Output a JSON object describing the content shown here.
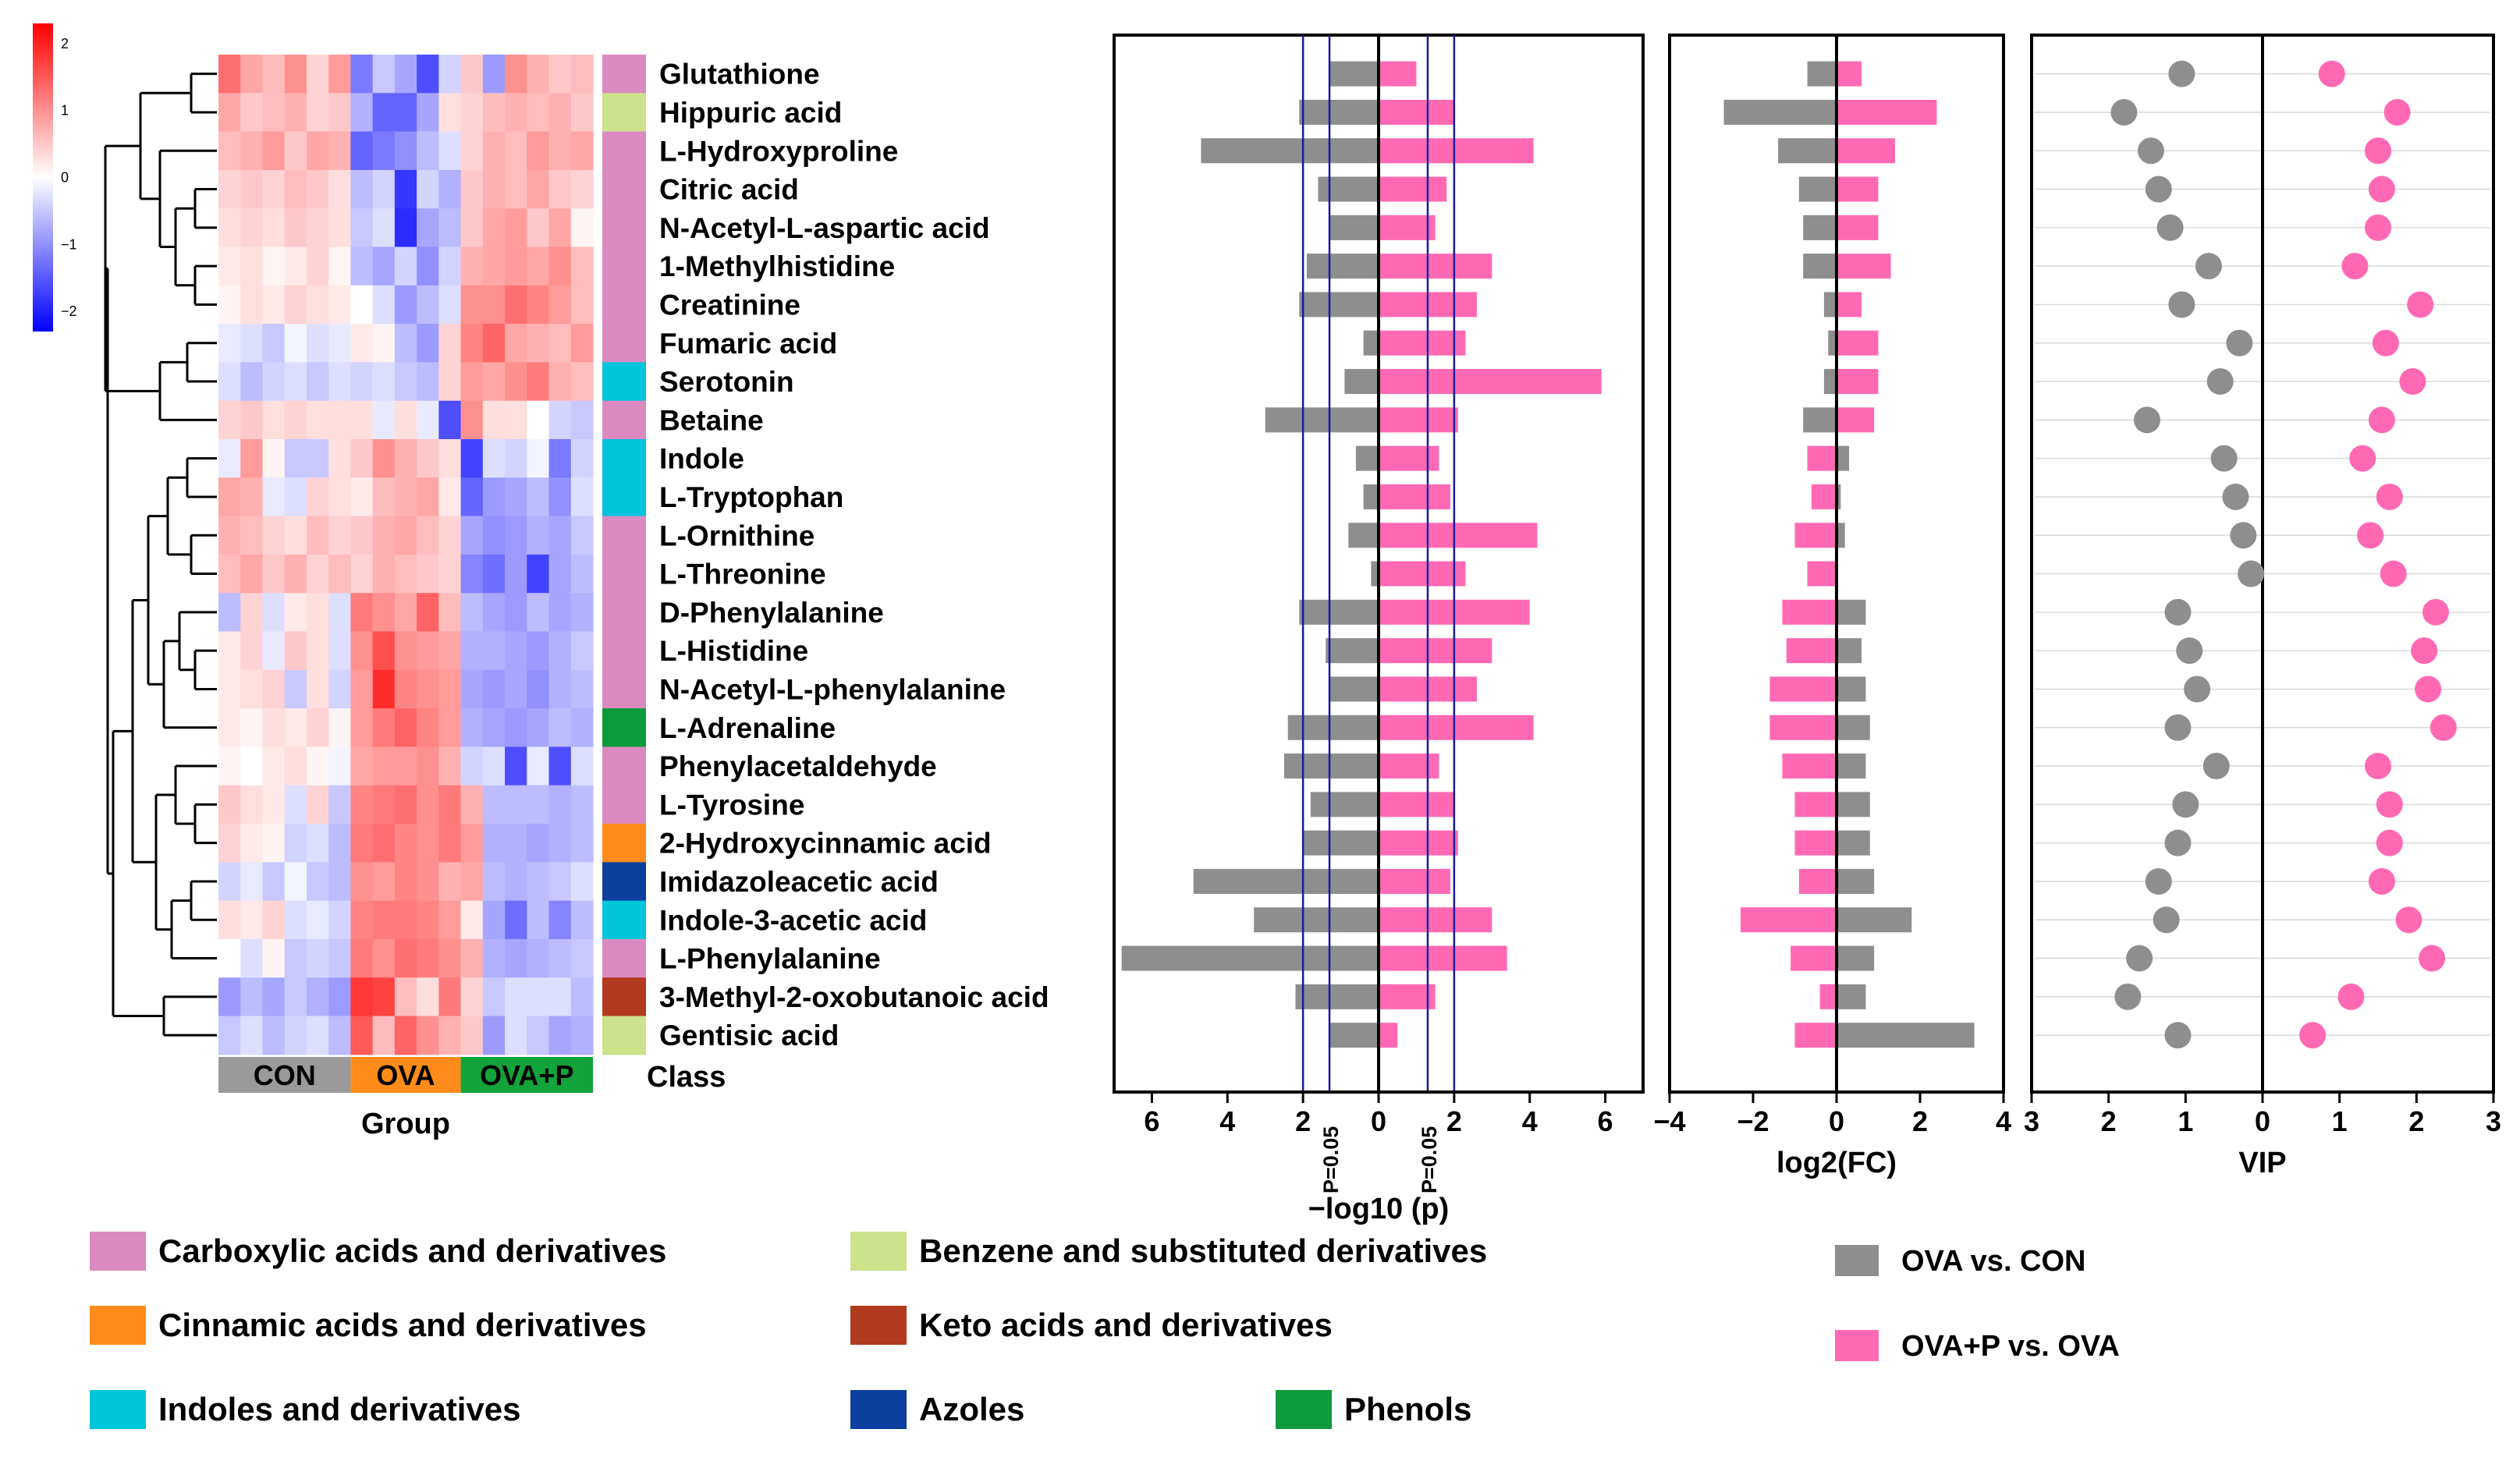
{
  "colors": {
    "Carboxylic acids and derivatives": "#DA8AC0",
    "Benzene and substituted derivatives": "#CDE38B",
    "Cinnamic acids and derivatives": "#FF8C1A",
    "Keto acids and derivatives": "#B23A1E",
    "Indoles and derivatives": "#00C5DB",
    "Azoles": "#0C3E9E",
    "Phenols": "#0C9B3B",
    "ova_vs_con": "#8E8E8E",
    "ovap_vs_ova": "#FF69B4",
    "group_CON": "#9A9A9A",
    "group_OVA": "#FF8C1A",
    "group_OVAP": "#12A33A",
    "pline": "#1A1AA0"
  },
  "chart_data": {
    "type": "heatmap",
    "title": "",
    "metabolites": [
      {
        "name": "Glutathione",
        "class": "Carboxylic acids and derivatives",
        "p_con": 1.3,
        "p_p": 1.0,
        "fc_con": -0.7,
        "fc_p": 0.6,
        "vip_con": 1.05,
        "vip_p": 0.9
      },
      {
        "name": "Hippuric acid",
        "class": "Benzene and substituted derivatives",
        "p_con": 2.1,
        "p_p": 2.0,
        "fc_con": -2.7,
        "fc_p": 2.4,
        "vip_con": 1.8,
        "vip_p": 1.75
      },
      {
        "name": "L-Hydroxyproline",
        "class": "Carboxylic acids and derivatives",
        "p_con": 4.7,
        "p_p": 4.1,
        "fc_con": -1.4,
        "fc_p": 1.4,
        "vip_con": 1.45,
        "vip_p": 1.5
      },
      {
        "name": "Citric acid",
        "class": "Carboxylic acids and derivatives",
        "p_con": 1.6,
        "p_p": 1.8,
        "fc_con": -0.9,
        "fc_p": 1.0,
        "vip_con": 1.35,
        "vip_p": 1.55
      },
      {
        "name": "N-Acetyl-L-aspartic acid",
        "class": "Carboxylic acids and derivatives",
        "p_con": 1.3,
        "p_p": 1.5,
        "fc_con": -0.8,
        "fc_p": 1.0,
        "vip_con": 1.2,
        "vip_p": 1.5
      },
      {
        "name": "1-Methylhistidine",
        "class": "Carboxylic acids and derivatives",
        "p_con": 1.9,
        "p_p": 3.0,
        "fc_con": -0.8,
        "fc_p": 1.3,
        "vip_con": 0.7,
        "vip_p": 1.2
      },
      {
        "name": "Creatinine",
        "class": "Carboxylic acids and derivatives",
        "p_con": 2.1,
        "p_p": 2.6,
        "fc_con": -0.3,
        "fc_p": 0.6,
        "vip_con": 1.05,
        "vip_p": 2.05
      },
      {
        "name": "Fumaric acid",
        "class": "Carboxylic acids and derivatives",
        "p_con": 0.4,
        "p_p": 2.3,
        "fc_con": -0.2,
        "fc_p": 1.0,
        "vip_con": 0.3,
        "vip_p": 1.6
      },
      {
        "name": "Serotonin",
        "class": "Indoles and derivatives",
        "p_con": 0.9,
        "p_p": 5.9,
        "fc_con": -0.3,
        "fc_p": 1.0,
        "vip_con": 0.55,
        "vip_p": 1.95
      },
      {
        "name": "Betaine",
        "class": "Carboxylic acids and derivatives",
        "p_con": 3.0,
        "p_p": 2.1,
        "fc_con": -0.8,
        "fc_p": 0.9,
        "vip_con": 1.5,
        "vip_p": 1.55
      },
      {
        "name": "Indole",
        "class": "Indoles and derivatives",
        "p_con": 0.6,
        "p_p": 1.6,
        "fc_con": 0.3,
        "fc_p": -0.7,
        "vip_con": 0.5,
        "vip_p": 1.3
      },
      {
        "name": "L-Tryptophan",
        "class": "Indoles and derivatives",
        "p_con": 0.4,
        "p_p": 1.9,
        "fc_con": 0.1,
        "fc_p": -0.6,
        "vip_con": 0.35,
        "vip_p": 1.65
      },
      {
        "name": "L-Ornithine",
        "class": "Carboxylic acids and derivatives",
        "p_con": 0.8,
        "p_p": 4.2,
        "fc_con": 0.2,
        "fc_p": -1.0,
        "vip_con": 0.25,
        "vip_p": 1.4
      },
      {
        "name": "L-Threonine",
        "class": "Carboxylic acids and derivatives",
        "p_con": 0.2,
        "p_p": 2.3,
        "fc_con": 0.0,
        "fc_p": -0.7,
        "vip_con": 0.15,
        "vip_p": 1.7
      },
      {
        "name": "D-Phenylalanine",
        "class": "Carboxylic acids and derivatives",
        "p_con": 2.1,
        "p_p": 4.0,
        "fc_con": 0.7,
        "fc_p": -1.3,
        "vip_con": 1.1,
        "vip_p": 2.25
      },
      {
        "name": "L-Histidine",
        "class": "Carboxylic acids and derivatives",
        "p_con": 1.4,
        "p_p": 3.0,
        "fc_con": 0.6,
        "fc_p": -1.2,
        "vip_con": 0.95,
        "vip_p": 2.1
      },
      {
        "name": "N-Acetyl-L-phenylalanine",
        "class": "Carboxylic acids and derivatives",
        "p_con": 1.3,
        "p_p": 2.6,
        "fc_con": 0.7,
        "fc_p": -1.6,
        "vip_con": 0.85,
        "vip_p": 2.15
      },
      {
        "name": "L-Adrenaline",
        "class": "Phenols",
        "p_con": 2.4,
        "p_p": 4.1,
        "fc_con": 0.8,
        "fc_p": -1.6,
        "vip_con": 1.1,
        "vip_p": 2.35
      },
      {
        "name": "Phenylacetaldehyde",
        "class": "Carboxylic acids and derivatives",
        "p_con": 2.5,
        "p_p": 1.6,
        "fc_con": 0.7,
        "fc_p": -1.3,
        "vip_con": 0.6,
        "vip_p": 1.5
      },
      {
        "name": "L-Tyrosine",
        "class": "Carboxylic acids and derivatives",
        "p_con": 1.8,
        "p_p": 2.0,
        "fc_con": 0.8,
        "fc_p": -1.0,
        "vip_con": 1.0,
        "vip_p": 1.65
      },
      {
        "name": "2-Hydroxycinnamic acid",
        "class": "Cinnamic acids and derivatives",
        "p_con": 2.0,
        "p_p": 2.1,
        "fc_con": 0.8,
        "fc_p": -1.0,
        "vip_con": 1.1,
        "vip_p": 1.65
      },
      {
        "name": "Imidazoleacetic acid",
        "class": "Azoles",
        "p_con": 4.9,
        "p_p": 1.9,
        "fc_con": 0.9,
        "fc_p": -0.9,
        "vip_con": 1.35,
        "vip_p": 1.55
      },
      {
        "name": "Indole-3-acetic acid",
        "class": "Indoles and derivatives",
        "p_con": 3.3,
        "p_p": 3.0,
        "fc_con": 1.8,
        "fc_p": -2.3,
        "vip_con": 1.25,
        "vip_p": 1.9
      },
      {
        "name": "L-Phenylalanine",
        "class": "Carboxylic acids and derivatives",
        "p_con": 6.8,
        "p_p": 3.4,
        "fc_con": 0.9,
        "fc_p": -1.1,
        "vip_con": 1.6,
        "vip_p": 2.2
      },
      {
        "name": "3-Methyl-2-oxobutanoic acid",
        "class": "Keto acids and derivatives",
        "p_con": 2.2,
        "p_p": 1.5,
        "fc_con": 0.7,
        "fc_p": -0.4,
        "vip_con": 1.75,
        "vip_p": 1.15
      },
      {
        "name": "Gentisic acid",
        "class": "Benzene and substituted derivatives",
        "p_con": 1.3,
        "p_p": 0.5,
        "fc_con": 3.3,
        "fc_p": -1.0,
        "vip_con": 1.1,
        "vip_p": 0.65
      }
    ],
    "heatmap_values": [
      [
        1.3,
        0.8,
        0.6,
        1.0,
        0.4,
        0.9,
        -1.2,
        -0.5,
        -0.8,
        -1.6,
        -0.4,
        0.5,
        -0.9,
        1.0,
        0.7,
        0.5,
        0.6
      ],
      [
        0.8,
        0.5,
        0.6,
        0.7,
        0.4,
        0.5,
        -0.7,
        -1.4,
        -1.4,
        -0.8,
        0.3,
        0.4,
        0.6,
        0.7,
        0.6,
        0.7,
        0.5
      ],
      [
        0.6,
        0.7,
        0.9,
        0.5,
        0.8,
        0.7,
        -1.4,
        -1.2,
        -1.0,
        -0.6,
        -0.3,
        0.4,
        0.7,
        0.6,
        0.9,
        0.7,
        0.8
      ],
      [
        0.4,
        0.5,
        0.4,
        0.6,
        0.5,
        0.3,
        -0.6,
        -0.4,
        -1.8,
        -0.4,
        -0.7,
        0.5,
        0.7,
        0.6,
        0.8,
        0.5,
        0.4
      ],
      [
        0.3,
        0.4,
        0.3,
        0.5,
        0.4,
        0.3,
        -0.5,
        -0.3,
        -1.9,
        -0.8,
        -0.6,
        0.5,
        0.8,
        0.9,
        0.5,
        0.8,
        0.1
      ],
      [
        0.2,
        0.3,
        0.1,
        0.2,
        0.4,
        0.1,
        -0.6,
        -0.8,
        -0.4,
        -1.0,
        -0.4,
        0.7,
        0.8,
        0.9,
        0.8,
        1.0,
        0.6
      ],
      [
        0.1,
        0.3,
        0.2,
        0.4,
        0.3,
        0.2,
        0.0,
        -0.3,
        -0.9,
        -0.6,
        -0.3,
        1.0,
        1.0,
        1.3,
        1.1,
        0.9,
        0.6
      ],
      [
        -0.2,
        -0.3,
        -0.5,
        -0.1,
        -0.3,
        -0.2,
        0.2,
        0.1,
        -0.6,
        -0.9,
        0.4,
        1.1,
        1.4,
        0.8,
        0.7,
        0.6,
        0.9
      ],
      [
        -0.3,
        -0.6,
        -0.4,
        -0.3,
        -0.5,
        -0.3,
        -0.4,
        -0.3,
        -0.5,
        -0.6,
        0.4,
        0.9,
        0.8,
        1.0,
        1.2,
        0.7,
        0.6
      ],
      [
        0.4,
        0.5,
        0.3,
        0.4,
        0.3,
        0.3,
        0.3,
        -0.2,
        0.3,
        -0.2,
        -1.6,
        1.0,
        0.3,
        0.3,
        0.0,
        -0.4,
        -0.5
      ],
      [
        -0.2,
        0.9,
        0.1,
        -0.5,
        -0.5,
        0.3,
        0.5,
        1.0,
        0.7,
        0.5,
        0.3,
        -1.7,
        -0.3,
        -0.4,
        -0.1,
        -1.2,
        -0.4
      ],
      [
        0.8,
        0.7,
        -0.2,
        -0.3,
        0.4,
        0.3,
        0.2,
        0.6,
        0.7,
        0.8,
        0.2,
        -1.4,
        -0.9,
        -0.8,
        -0.6,
        -1.0,
        -0.3
      ],
      [
        0.7,
        0.6,
        0.4,
        0.3,
        0.6,
        0.4,
        0.5,
        0.7,
        0.8,
        0.6,
        0.4,
        -0.8,
        -1.0,
        -0.9,
        -0.7,
        -0.8,
        -0.5
      ],
      [
        0.6,
        0.8,
        0.5,
        0.7,
        0.4,
        0.6,
        0.4,
        0.7,
        0.6,
        0.5,
        0.4,
        -1.1,
        -1.3,
        -0.9,
        -1.7,
        -0.8,
        -0.6
      ],
      [
        -0.6,
        0.4,
        -0.3,
        0.2,
        0.3,
        -0.3,
        1.2,
        1.0,
        0.8,
        1.4,
        0.6,
        -0.6,
        -0.8,
        -0.9,
        -0.6,
        -0.8,
        -0.7
      ],
      [
        0.2,
        0.4,
        -0.2,
        0.5,
        0.3,
        -0.3,
        1.0,
        1.6,
        1.0,
        0.9,
        0.8,
        -0.7,
        -0.7,
        -0.8,
        -0.9,
        -0.7,
        -0.5
      ],
      [
        0.2,
        0.3,
        0.4,
        -0.5,
        0.3,
        -0.4,
        0.9,
        1.9,
        1.1,
        1.0,
        0.9,
        -0.8,
        -0.9,
        -0.8,
        -1.0,
        -0.7,
        -0.6
      ],
      [
        0.2,
        0.1,
        0.3,
        0.2,
        0.4,
        0.1,
        0.9,
        1.2,
        1.4,
        1.1,
        0.9,
        -0.7,
        -0.8,
        -0.9,
        -0.8,
        -0.6,
        -0.7
      ],
      [
        0.1,
        0.0,
        0.2,
        0.3,
        0.1,
        -0.1,
        0.8,
        0.9,
        0.9,
        1.0,
        0.7,
        -0.4,
        -0.3,
        -1.6,
        -0.2,
        -1.6,
        -0.3
      ],
      [
        0.5,
        0.3,
        0.2,
        -0.3,
        0.4,
        -0.5,
        1.1,
        1.2,
        1.3,
        1.0,
        1.2,
        0.7,
        -0.6,
        -0.6,
        -0.6,
        -0.7,
        -0.6
      ],
      [
        0.4,
        0.2,
        0.1,
        -0.4,
        -0.3,
        -0.6,
        1.2,
        1.3,
        1.1,
        1.0,
        1.2,
        0.9,
        -0.7,
        -0.7,
        -0.8,
        -0.7,
        -0.6
      ],
      [
        -0.4,
        -0.2,
        -0.5,
        -0.1,
        -0.5,
        -0.6,
        1.0,
        0.9,
        1.1,
        1.0,
        0.7,
        0.8,
        -0.6,
        -0.7,
        -0.6,
        -0.5,
        -0.3
      ],
      [
        0.3,
        0.2,
        0.4,
        -0.3,
        -0.2,
        -0.4,
        1.1,
        1.2,
        1.2,
        1.1,
        0.9,
        0.2,
        -0.8,
        -1.3,
        -0.6,
        -1.1,
        -0.6
      ],
      [
        0.0,
        -0.3,
        0.1,
        -0.5,
        -0.4,
        -0.5,
        1.2,
        1.0,
        1.3,
        1.2,
        1.0,
        0.7,
        -0.7,
        -0.8,
        -0.7,
        -0.6,
        -0.5
      ],
      [
        -0.9,
        -0.6,
        -0.8,
        -0.5,
        -0.7,
        -0.9,
        1.8,
        1.7,
        0.6,
        0.3,
        1.2,
        0.4,
        -0.5,
        -0.3,
        -0.3,
        -0.3,
        -0.6
      ],
      [
        -0.5,
        -0.3,
        -0.6,
        -0.4,
        -0.3,
        -0.6,
        1.5,
        0.6,
        1.4,
        1.0,
        0.7,
        0.5,
        -0.9,
        -0.3,
        -0.5,
        -0.8,
        -0.7
      ]
    ],
    "groups": [
      {
        "label": "CON",
        "n": 6
      },
      {
        "label": "OVA",
        "n": 5
      },
      {
        "label": "OVA+P",
        "n": 6
      }
    ],
    "group_label": "Group",
    "class_label": "Class",
    "colorbar": {
      "ticks": [
        "2",
        "1",
        "0",
        "−1",
        "−2"
      ],
      "range": [
        -2.3,
        2.3
      ]
    },
    "panels": {
      "pvalue": {
        "xlabel": "−log10 (p)",
        "ticks": [
          "6",
          "4",
          "2",
          "0",
          "2",
          "4",
          "6"
        ],
        "range": [
          7,
          7
        ],
        "threshold_label": "P=0.05",
        "threshold_values": [
          1.3,
          2.0
        ]
      },
      "fc": {
        "xlabel": "log2(FC)",
        "ticks": [
          "−4",
          "−2",
          "0",
          "2",
          "4"
        ],
        "range": [
          -4,
          4
        ]
      },
      "vip": {
        "xlabel": "VIP",
        "ticks": [
          "3",
          "2",
          "1",
          "0",
          "1",
          "2",
          "3"
        ],
        "range": [
          3,
          3
        ]
      }
    },
    "legend": [
      {
        "label": "Carboxylic acids and derivatives",
        "color": "#DA8AC0"
      },
      {
        "label": "Benzene and substituted derivatives",
        "color": "#CDE38B"
      },
      {
        "label": "Cinnamic acids and derivatives",
        "color": "#FF8C1A"
      },
      {
        "label": "Keto acids and derivatives",
        "color": "#B23A1E"
      },
      {
        "label": "Indoles and derivatives",
        "color": "#00C5DB"
      },
      {
        "label": "Azoles",
        "color": "#0C3E9E"
      },
      {
        "label": "Phenols",
        "color": "#0C9B3B"
      }
    ],
    "series": [
      {
        "name": "OVA vs. CON",
        "color": "#8E8E8E"
      },
      {
        "name": "OVA+P vs. OVA",
        "color": "#FF69B4"
      }
    ]
  }
}
